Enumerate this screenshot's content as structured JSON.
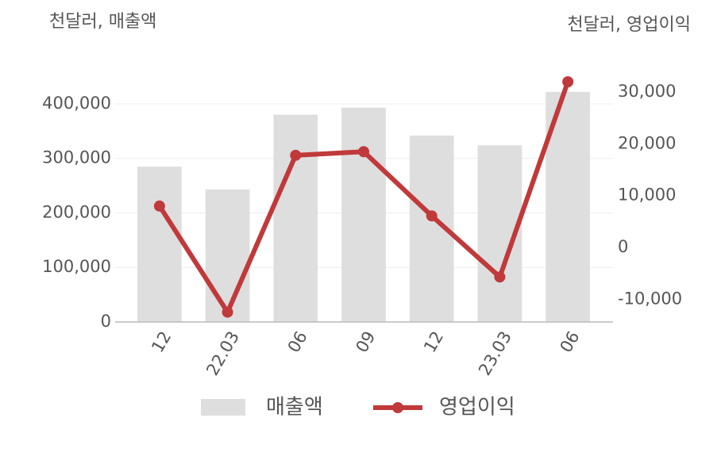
{
  "chart_data": {
    "type": "combo",
    "y_label": "천달러, 매출액",
    "y2_label": "천달러, 영업이익",
    "categories": [
      "12",
      "22.03",
      "06",
      "09",
      "12",
      "23.03",
      "06"
    ],
    "series": [
      {
        "name": "매출액",
        "type": "bar",
        "color": "#dedede",
        "values": [
          285000,
          243000,
          380000,
          393000,
          342000,
          324000,
          422000
        ]
      },
      {
        "name": "영업이익",
        "type": "line",
        "axis": "y2",
        "color": "#c0393b",
        "values": [
          8000,
          -12500,
          17800,
          18500,
          6100,
          -5700,
          32000
        ]
      }
    ],
    "ylim": [
      0,
      450000
    ],
    "yticks": [
      0,
      {
        "value": 100000,
        "label": "100,000"
      },
      {
        "value": 200000,
        "label": "200,000"
      },
      {
        "value": 300000,
        "label": "300,000"
      },
      {
        "value": 400000,
        "label": "400,000"
      }
    ],
    "y2lim": [
      -14400,
      33000
    ],
    "y2ticks": [
      {
        "value": -10000,
        "label": "-10,000"
      },
      0,
      {
        "value": 10000,
        "label": "10,000"
      },
      {
        "value": 20000,
        "label": "20,000"
      },
      {
        "value": 30000,
        "label": "30,000"
      }
    ],
    "grid": true
  }
}
